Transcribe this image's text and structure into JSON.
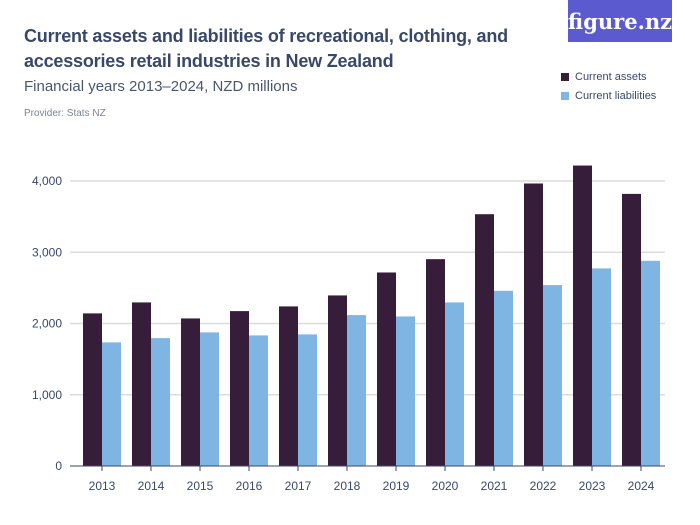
{
  "logo": "figure.nz",
  "chart_data": {
    "type": "bar",
    "title": "Current assets and liabilities of recreational, clothing, and accessories retail industries in New Zealand",
    "subtitle": "Financial years 2013–2024, NZD millions",
    "provider": "Provider: Stats NZ",
    "categories": [
      "2013",
      "2014",
      "2015",
      "2016",
      "2017",
      "2018",
      "2019",
      "2020",
      "2021",
      "2022",
      "2023",
      "2024"
    ],
    "series": [
      {
        "name": "Current assets",
        "color": "#361e3b",
        "values": [
          2142,
          2296,
          2071,
          2174,
          2240,
          2394,
          2716,
          2903,
          3534,
          3965,
          4217,
          3819
        ]
      },
      {
        "name": "Current liabilities",
        "color": "#7fb5e3",
        "values": [
          1735,
          1795,
          1875,
          1833,
          1847,
          2118,
          2099,
          2296,
          2459,
          2539,
          2773,
          2880
        ]
      }
    ],
    "ylim": [
      0,
      4000
    ],
    "yticks": [
      0,
      1000,
      2000,
      3000,
      4000
    ],
    "ytick_labels": [
      "0",
      "1,000",
      "2,000",
      "3,000",
      "4,000"
    ],
    "grid": true,
    "legend": "top-right",
    "xlabel": "",
    "ylabel": ""
  }
}
